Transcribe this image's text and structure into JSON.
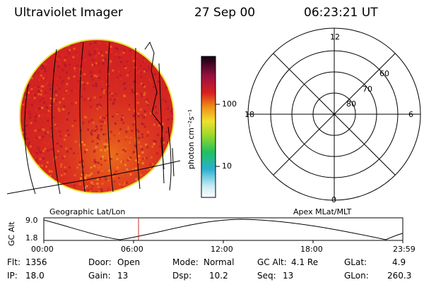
{
  "header": {
    "title": "Ultraviolet Imager",
    "date": "27 Sep 00",
    "time": "06:23:21 UT"
  },
  "colorbar": {
    "unit_label": "photon cm⁻²s⁻¹",
    "tick_labels": [
      "100",
      "10"
    ]
  },
  "polar_grid": {
    "mlt_labels": {
      "top": "12",
      "left": "18",
      "right": "6",
      "bottom": "0"
    },
    "lat_labels": [
      "60",
      "70",
      "80"
    ]
  },
  "captions": {
    "left": "Geographic Lat/Lon",
    "right": "Apex MLat/MLT"
  },
  "altitude_plot": {
    "axis_label": "GC Alt",
    "y_ticks": [
      "9.0",
      "1.8"
    ],
    "x_ticks": [
      "00:00",
      "06:00",
      "12:00",
      "18:00",
      "23:59"
    ],
    "current_time_marker": "06:23"
  },
  "info": {
    "row1": [
      {
        "label": "Flt:",
        "value": "1356"
      },
      {
        "label": "Door:",
        "value": "Open"
      },
      {
        "label": "Mode:",
        "value": "Normal"
      },
      {
        "label": "GC Alt:",
        "value": "4.1 Re"
      },
      {
        "label": "GLat:",
        "value": "4.9"
      }
    ],
    "row2": [
      {
        "label": "IP:",
        "value": "18.0"
      },
      {
        "label": "Gain:",
        "value": "13"
      },
      {
        "label": "Dsp:",
        "value": "10.2"
      },
      {
        "label": "Seq:",
        "value": "13"
      },
      {
        "label": "GLon:",
        "value": "260.3"
      }
    ]
  },
  "colors": {
    "disk_base": "#d42222",
    "disk_hot": "#f07a1a",
    "disk_rim": "#e8e83a",
    "marker_line": "#c83232",
    "line": "#000000"
  }
}
